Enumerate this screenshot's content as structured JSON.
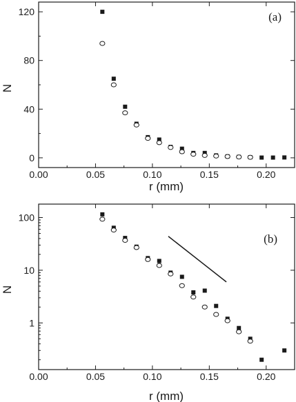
{
  "chart_data": [
    {
      "type": "scatter",
      "panel_label": "(a)",
      "xlabel": "r (mm)",
      "ylabel": "N",
      "xlim": [
        0.0,
        0.225
      ],
      "ylim": [
        -8,
        128
      ],
      "yscale": "linear",
      "x_ticks": [
        "0.00",
        "0.05",
        "0.10",
        "0.15",
        "0.20"
      ],
      "x_tick_values": [
        0.0,
        0.05,
        0.1,
        0.15,
        0.2
      ],
      "y_ticks": [
        "0",
        "40",
        "80",
        "120"
      ],
      "y_tick_values": [
        0,
        40,
        80,
        120
      ],
      "grid": false,
      "series": [
        {
          "marker": "filled-square",
          "x": [
            0.056,
            0.066,
            0.076,
            0.086,
            0.096,
            0.106,
            0.116,
            0.126,
            0.136,
            0.146,
            0.156,
            0.166,
            0.176,
            0.186,
            0.196,
            0.206,
            0.216
          ],
          "y": [
            120,
            65,
            42,
            28,
            17,
            15,
            9,
            7.5,
            4,
            4,
            2,
            1.2,
            0.8,
            0.5,
            0.2,
            0.2,
            0.3
          ]
        },
        {
          "marker": "open-circle",
          "x": [
            0.056,
            0.066,
            0.076,
            0.086,
            0.096,
            0.106,
            0.116,
            0.126,
            0.136,
            0.146,
            0.156,
            0.166,
            0.176,
            0.186
          ],
          "y": [
            94,
            60,
            37,
            27,
            16,
            12.5,
            8.5,
            5,
            3,
            2,
            1.5,
            1.1,
            0.7,
            0.45
          ]
        }
      ]
    },
    {
      "type": "scatter",
      "panel_label": "(b)",
      "xlabel": "r (mm)",
      "ylabel": "N",
      "xlim": [
        0.0,
        0.225
      ],
      "ylim": [
        0.13,
        180
      ],
      "yscale": "log",
      "x_ticks": [
        "0.00",
        "0.05",
        "0.10",
        "0.15",
        "0.20"
      ],
      "x_tick_values": [
        0.0,
        0.05,
        0.1,
        0.15,
        0.2
      ],
      "y_ticks": [
        "1",
        "10",
        "100"
      ],
      "y_tick_values": [
        1,
        10,
        100
      ],
      "grid": false,
      "series": [
        {
          "marker": "filled-square",
          "x": [
            0.056,
            0.066,
            0.076,
            0.086,
            0.096,
            0.106,
            0.116,
            0.126,
            0.136,
            0.146,
            0.156,
            0.166,
            0.176,
            0.186,
            0.196,
            0.216
          ],
          "y": [
            115,
            64,
            41,
            28,
            17,
            15,
            9,
            7.5,
            3.8,
            4.1,
            2.1,
            1.2,
            0.8,
            0.5,
            0.2,
            0.3
          ]
        },
        {
          "marker": "open-circle",
          "x": [
            0.056,
            0.066,
            0.076,
            0.086,
            0.096,
            0.106,
            0.116,
            0.126,
            0.136,
            0.146,
            0.156,
            0.166,
            0.176,
            0.186
          ],
          "y": [
            93,
            58,
            37,
            27,
            16,
            12.3,
            8.5,
            5.1,
            3.1,
            2.0,
            1.45,
            1.1,
            0.68,
            0.45
          ]
        }
      ],
      "reference_line": {
        "x": [
          0.114,
          0.165
        ],
        "y": [
          44,
          6
        ]
      }
    }
  ]
}
